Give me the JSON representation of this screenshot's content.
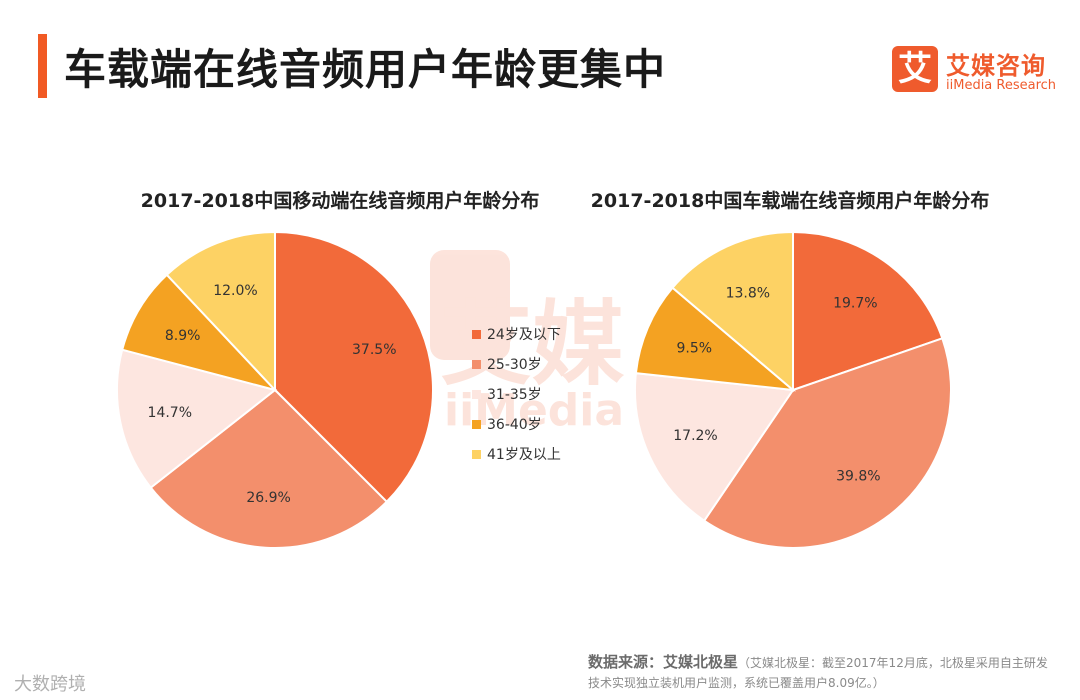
{
  "header": {
    "title": "车载端在线音频用户年龄更集中",
    "accent_color": "#f15a24"
  },
  "brand": {
    "logo_char": "艾",
    "name": "艾媒咨询",
    "name_en": "iiMedia Research"
  },
  "watermark": {
    "text": "艾媒",
    "sub": "iiMedia"
  },
  "chart_data": [
    {
      "type": "pie",
      "title": "2017-2018中国移动端在线音频用户年龄分布",
      "categories": [
        "24岁及以下",
        "25-30岁",
        "31-35岁",
        "36-40岁",
        "41岁及以上"
      ],
      "values": [
        37.5,
        26.9,
        14.7,
        8.9,
        12.0
      ],
      "labels": [
        "37.5%",
        "26.9%",
        "14.7%",
        "8.9%",
        "12.0%"
      ],
      "colors": [
        "#f26a3a",
        "#f38f6c",
        "#fde6e0",
        "#f4a222",
        "#fdd264"
      ],
      "legend": "center"
    },
    {
      "type": "pie",
      "title": "2017-2018中国车载端在线音频用户年龄分布",
      "categories": [
        "24岁及以下",
        "25-30岁",
        "31-35岁",
        "36-40岁",
        "41岁及以上"
      ],
      "values": [
        19.7,
        39.8,
        17.2,
        9.5,
        13.8
      ],
      "labels": [
        "19.7%",
        "39.8%",
        "17.2%",
        "9.5%",
        "13.8%"
      ],
      "colors": [
        "#f26a3a",
        "#f38f6c",
        "#fde6e0",
        "#f4a222",
        "#fdd264"
      ],
      "legend": "center"
    }
  ],
  "legend": {
    "items": [
      "24岁及以下",
      "25-30岁",
      "31-35岁",
      "36-40岁",
      "41岁及以上"
    ],
    "colors": [
      "#f26a3a",
      "#f38f6c",
      "#fde6e0",
      "#f4a222",
      "#fdd264"
    ]
  },
  "source": {
    "label": "数据来源：艾媒北极星",
    "note": "（艾媒北极星：截至2017年12月底，北极星采用自主研发技术实现独立装机用户监测，系统已覆盖用户8.09亿。）"
  },
  "corner": {
    "text": "大数跨境"
  }
}
